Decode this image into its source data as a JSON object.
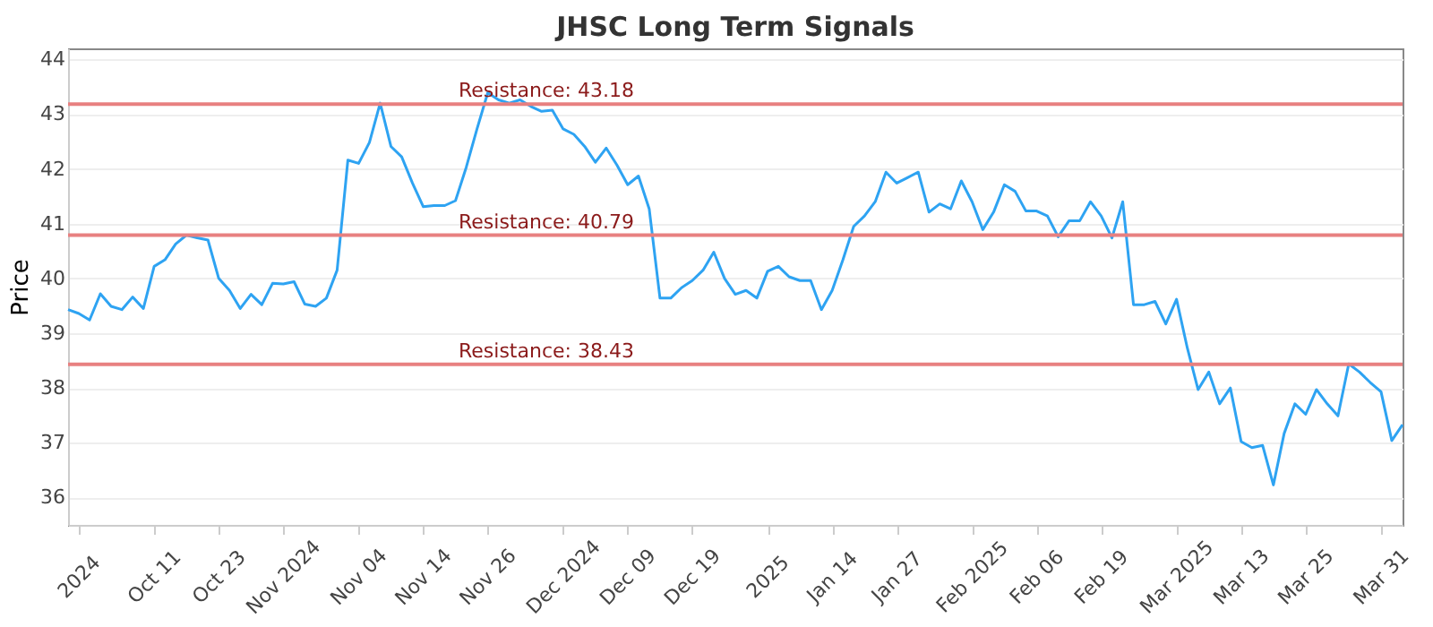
{
  "chart_data": {
    "type": "line",
    "title": "JHSC Long Term Signals",
    "ylabel": "Price",
    "categories": [
      null,
      "2024",
      null,
      null,
      null,
      null,
      null,
      null,
      "Oct 11",
      null,
      null,
      null,
      null,
      null,
      "Oct 23",
      null,
      null,
      null,
      null,
      null,
      "Nov 2024",
      null,
      null,
      null,
      null,
      null,
      null,
      "Nov 04",
      null,
      null,
      null,
      null,
      null,
      "Nov 14",
      null,
      null,
      null,
      null,
      null,
      "Nov 26",
      null,
      null,
      null,
      null,
      null,
      null,
      "Dec 2024",
      null,
      null,
      null,
      null,
      null,
      "Dec 09",
      null,
      null,
      null,
      null,
      null,
      "Dec 19",
      null,
      null,
      null,
      null,
      null,
      null,
      "2025",
      null,
      null,
      null,
      null,
      null,
      "Jan 14",
      null,
      null,
      null,
      null,
      null,
      "Jan 27",
      null,
      null,
      null,
      null,
      null,
      null,
      "Feb 2025",
      null,
      null,
      null,
      null,
      null,
      "Feb 06",
      null,
      null,
      null,
      null,
      null,
      "Feb 19",
      null,
      null,
      null,
      null,
      null,
      null,
      "Mar 2025",
      null,
      null,
      null,
      null,
      null,
      "Mar 13",
      null,
      null,
      null,
      null,
      null,
      "Mar 25",
      null,
      null,
      null,
      null,
      null,
      null,
      "Mar 31",
      null,
      null
    ],
    "series": [
      {
        "color": "#2ea3f2",
        "values": [
          39.43,
          39.36,
          39.24,
          39.72,
          39.49,
          39.43,
          39.66,
          39.45,
          40.22,
          40.34,
          40.63,
          40.79,
          40.74,
          40.7,
          40.0,
          39.78,
          39.45,
          39.71,
          39.52,
          39.91,
          39.9,
          39.94,
          39.53,
          39.49,
          39.64,
          40.15,
          42.16,
          42.1,
          42.48,
          43.2,
          42.41,
          42.22,
          41.74,
          41.31,
          41.33,
          41.33,
          41.42,
          42.03,
          42.73,
          43.39,
          43.26,
          43.2,
          43.26,
          43.14,
          43.05,
          43.07,
          42.73,
          42.63,
          42.41,
          42.12,
          42.38,
          42.07,
          41.71,
          41.87,
          41.27,
          39.64,
          39.64,
          39.83,
          39.96,
          40.15,
          40.48,
          40.0,
          39.71,
          39.78,
          39.64,
          40.13,
          40.22,
          40.03,
          39.96,
          39.96,
          39.43,
          39.78,
          40.34,
          40.95,
          41.14,
          41.4,
          41.94,
          41.74,
          41.84,
          41.94,
          41.21,
          41.36,
          41.27,
          41.78,
          41.4,
          40.89,
          41.21,
          41.71,
          41.59,
          41.23,
          41.23,
          41.14,
          40.76,
          41.05,
          41.05,
          41.4,
          41.14,
          40.74,
          41.4,
          39.52,
          39.52,
          39.58,
          39.17,
          39.62,
          38.73,
          37.97,
          38.29,
          37.71,
          38.0,
          37.02,
          36.91,
          36.95,
          36.23,
          37.17,
          37.71,
          37.52,
          37.97,
          37.71,
          37.49,
          38.44,
          38.29,
          38.1,
          37.93,
          37.04,
          37.33
        ]
      }
    ],
    "ylim": [
      35.5,
      44.2
    ],
    "yticks": [
      36,
      37,
      38,
      39,
      40,
      41,
      42,
      43,
      44
    ],
    "grid": "y",
    "marker": "none",
    "line_style": "solid",
    "ref_lines": [
      {
        "axis": "y",
        "value": 43.18,
        "label": "Resistance: 43.18",
        "color": "#e88080"
      },
      {
        "axis": "y",
        "value": 40.79,
        "label": "Resistance: 40.79",
        "color": "#e88080"
      },
      {
        "axis": "y",
        "value": 38.43,
        "label": "Resistance: 38.43",
        "color": "#e88080"
      }
    ]
  }
}
